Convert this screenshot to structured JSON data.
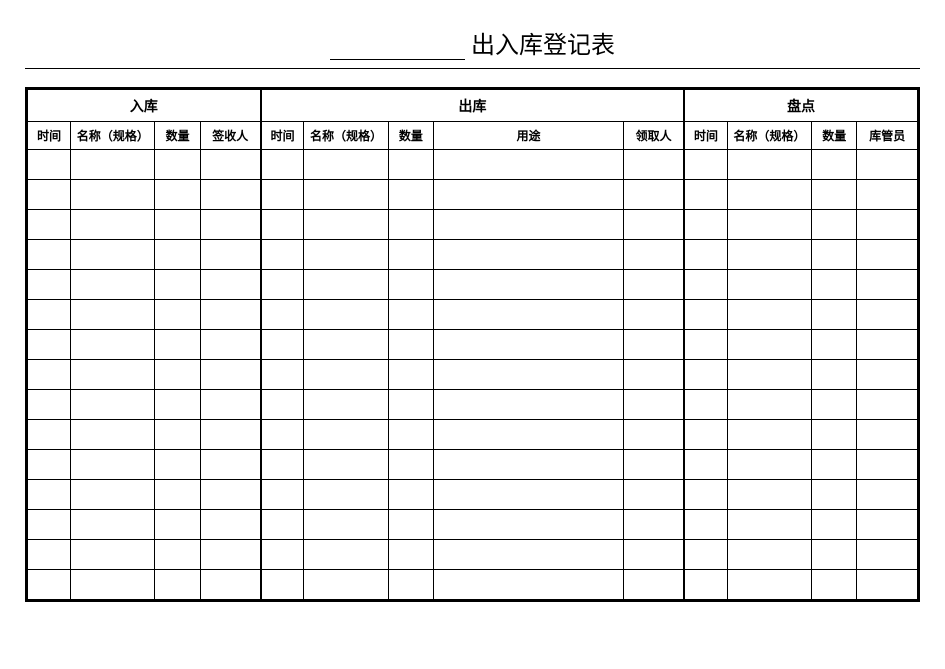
{
  "title": {
    "text": "出入库登记表"
  },
  "table": {
    "groups": {
      "inbound": "入库",
      "outbound": "出库",
      "inventory": "盘点"
    },
    "columns": {
      "time": "时间",
      "name_spec": "名称（规格）",
      "quantity": "数量",
      "signer": "签收人",
      "usage": "用途",
      "receiver": "领取人",
      "keeper": "库管员"
    },
    "row_count": 15,
    "styling": {
      "outer_border_width": 2,
      "cell_border_width": 1,
      "border_color": "#000000",
      "background_color": "#ffffff",
      "text_color": "#000000",
      "title_fontsize": 24,
      "group_header_fontsize": 14,
      "column_header_fontsize": 12,
      "column_widths": {
        "time": 40,
        "name_spec": 78,
        "quantity": 42,
        "person": 56,
        "usage": 176
      }
    }
  }
}
